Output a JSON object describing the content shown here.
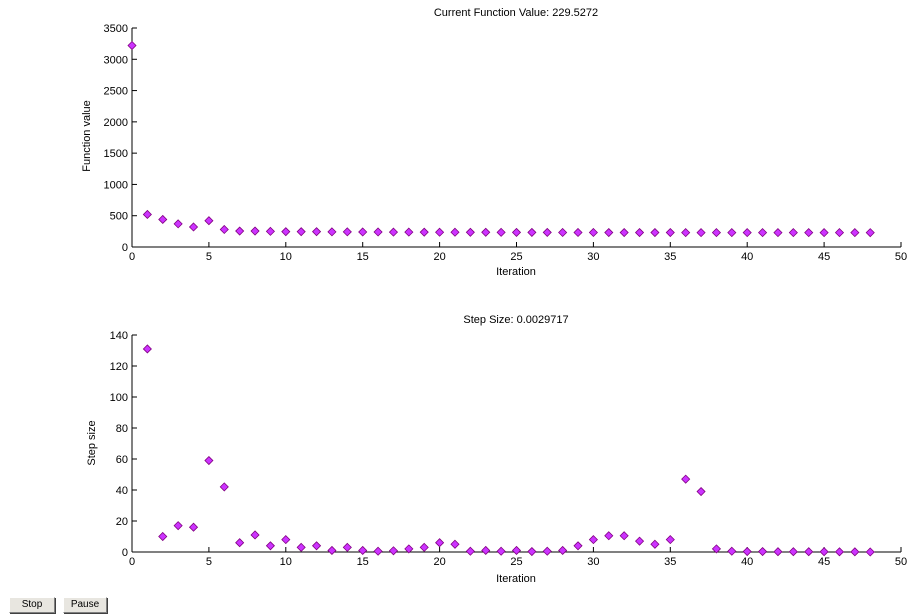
{
  "buttons": {
    "stop_label": "Stop",
    "pause_label": "Pause"
  },
  "colors": {
    "marker": "#cc33ff",
    "marker_edge": "#800080",
    "axis": "#000000"
  },
  "chart_data": [
    {
      "type": "scatter",
      "title": "Current Function Value: 229.5272",
      "xlabel": "Iteration",
      "ylabel": "Function value",
      "xlim": [
        0,
        50
      ],
      "ylim": [
        0,
        3500
      ],
      "xticks": [
        0,
        5,
        10,
        15,
        20,
        25,
        30,
        35,
        40,
        45,
        50
      ],
      "yticks": [
        0,
        500,
        1000,
        1500,
        2000,
        2500,
        3000,
        3500
      ],
      "grid": false,
      "marker": "diamond",
      "x": [
        0,
        1,
        2,
        3,
        4,
        5,
        6,
        7,
        8,
        9,
        10,
        11,
        12,
        13,
        14,
        15,
        16,
        17,
        18,
        19,
        20,
        21,
        22,
        23,
        24,
        25,
        26,
        27,
        28,
        29,
        30,
        31,
        32,
        33,
        34,
        35,
        36,
        37,
        38,
        39,
        40,
        41,
        42,
        43,
        44,
        45,
        46,
        47,
        48
      ],
      "y": [
        3220,
        520,
        440,
        370,
        320,
        420,
        280,
        255,
        255,
        250,
        245,
        245,
        245,
        242,
        242,
        240,
        240,
        238,
        238,
        237,
        236,
        236,
        235,
        235,
        234,
        233,
        233,
        233,
        232,
        232,
        232,
        231,
        231,
        231,
        231,
        231,
        230,
        230,
        230,
        230,
        230,
        230,
        230,
        230,
        230,
        230,
        230,
        230,
        229.5272
      ]
    },
    {
      "type": "scatter",
      "title": "Step Size: 0.0029717",
      "xlabel": "Iteration",
      "ylabel": "Step size",
      "xlim": [
        0,
        50
      ],
      "ylim": [
        0,
        140
      ],
      "xticks": [
        0,
        5,
        10,
        15,
        20,
        25,
        30,
        35,
        40,
        45,
        50
      ],
      "yticks": [
        0,
        20,
        40,
        60,
        80,
        100,
        120,
        140
      ],
      "grid": false,
      "marker": "diamond",
      "x": [
        1,
        2,
        3,
        4,
        5,
        6,
        7,
        8,
        9,
        10,
        11,
        12,
        13,
        14,
        15,
        16,
        17,
        18,
        19,
        20,
        21,
        22,
        23,
        24,
        25,
        26,
        27,
        28,
        29,
        30,
        31,
        32,
        33,
        34,
        35,
        36,
        37,
        38,
        39,
        40,
        41,
        42,
        43,
        44,
        45,
        46,
        47,
        48
      ],
      "y": [
        131,
        10,
        17,
        16,
        59,
        42,
        6,
        11,
        4,
        8,
        3,
        4,
        1,
        3,
        1,
        0.5,
        0.8,
        2,
        3,
        6,
        5,
        0.5,
        1,
        0.5,
        1,
        0.3,
        0.5,
        1,
        4,
        8,
        10.5,
        10.5,
        7,
        5,
        8,
        47,
        39,
        2,
        0.5,
        0.3,
        0.3,
        0.2,
        0.2,
        0.2,
        0.2,
        0.1,
        0.1,
        0.003
      ]
    }
  ]
}
